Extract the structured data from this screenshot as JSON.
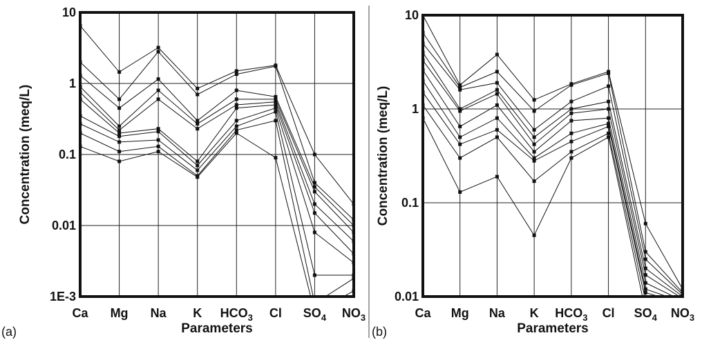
{
  "chart_data": [
    {
      "type": "line",
      "panel_label": "(a)",
      "categories": [
        "Ca",
        "Mg",
        "Na",
        "K",
        "HCO3",
        "Cl",
        "SO4",
        "NO3"
      ],
      "category_labels": [
        {
          "main": "Ca",
          "sub": ""
        },
        {
          "main": "Mg",
          "sub": ""
        },
        {
          "main": "Na",
          "sub": ""
        },
        {
          "main": "K",
          "sub": ""
        },
        {
          "main": "HCO",
          "sub": "3"
        },
        {
          "main": "Cl",
          "sub": ""
        },
        {
          "main": "SO",
          "sub": "4"
        },
        {
          "main": "NO",
          "sub": "3"
        }
      ],
      "xlabel": "Parameters",
      "ylabel": "Concentration (meq/L)",
      "yscale": "log",
      "ylim": [
        0.001,
        10
      ],
      "yticks": [
        10,
        1,
        0.1,
        0.01,
        0.001
      ],
      "ytick_labels": [
        "10",
        "1",
        "0.1",
        "0.01",
        "1E-3"
      ],
      "grid": true,
      "series": [
        {
          "values": [
            6.5,
            1.45,
            3.2,
            0.85,
            1.5,
            1.8,
            0.1,
            0.02
          ]
        },
        {
          "values": [
            2.0,
            0.6,
            2.8,
            0.7,
            1.35,
            1.75,
            0.04,
            0.012
          ]
        },
        {
          "values": [
            1.3,
            0.45,
            1.15,
            0.3,
            0.8,
            0.65,
            0.035,
            0.01
          ]
        },
        {
          "values": [
            0.9,
            0.25,
            0.8,
            0.27,
            0.6,
            0.6,
            0.03,
            0.008
          ]
        },
        {
          "values": [
            0.75,
            0.22,
            0.6,
            0.23,
            0.5,
            0.55,
            0.02,
            0.006
          ]
        },
        {
          "values": [
            0.6,
            0.2,
            0.23,
            0.08,
            0.45,
            0.5,
            0.015,
            0.004
          ]
        },
        {
          "values": [
            0.35,
            0.18,
            0.21,
            0.07,
            0.3,
            0.45,
            0.008,
            0.003
          ]
        },
        {
          "values": [
            0.27,
            0.15,
            0.16,
            0.06,
            0.25,
            0.4,
            0.002,
            0.002
          ]
        },
        {
          "values": [
            0.2,
            0.11,
            0.13,
            0.05,
            0.22,
            0.3,
            0.0008,
            0.0018
          ]
        },
        {
          "values": [
            0.13,
            0.08,
            0.11,
            0.048,
            0.2,
            0.09,
            0.0006,
            0.0012
          ]
        }
      ]
    },
    {
      "type": "line",
      "panel_label": "(b)",
      "categories": [
        "Ca",
        "Mg",
        "Na",
        "K",
        "HCO3",
        "Cl",
        "SO4",
        "NO3"
      ],
      "category_labels": [
        {
          "main": "Ca",
          "sub": ""
        },
        {
          "main": "Mg",
          "sub": ""
        },
        {
          "main": "Na",
          "sub": ""
        },
        {
          "main": "K",
          "sub": ""
        },
        {
          "main": "HCO",
          "sub": "3"
        },
        {
          "main": "Cl",
          "sub": ""
        },
        {
          "main": "SO",
          "sub": "4"
        },
        {
          "main": "NO",
          "sub": "3"
        }
      ],
      "xlabel": "Parameters",
      "ylabel": "Concentration (meq/L)",
      "yscale": "log",
      "ylim": [
        0.01,
        10
      ],
      "yticks": [
        10,
        1,
        0.1,
        0.01
      ],
      "ytick_labels": [
        "10",
        "1",
        "0.1",
        "0.01"
      ],
      "grid": true,
      "series": [
        {
          "values": [
            10.0,
            1.8,
            3.8,
            1.25,
            1.85,
            2.5,
            0.06,
            0.012
          ]
        },
        {
          "values": [
            6.5,
            1.7,
            2.5,
            0.95,
            1.8,
            2.4,
            0.03,
            0.011
          ]
        },
        {
          "values": [
            5.0,
            1.6,
            1.9,
            0.6,
            1.2,
            1.75,
            0.025,
            0.0105
          ]
        },
        {
          "values": [
            4.0,
            1.0,
            1.6,
            0.5,
            1.0,
            1.2,
            0.02,
            0.01
          ]
        },
        {
          "values": [
            3.3,
            0.95,
            1.45,
            0.42,
            0.9,
            1.0,
            0.017,
            0.0095
          ]
        },
        {
          "values": [
            2.6,
            0.65,
            1.1,
            0.35,
            0.75,
            0.8,
            0.014,
            0.009
          ]
        },
        {
          "values": [
            2.0,
            0.5,
            0.8,
            0.3,
            0.55,
            0.7,
            0.012,
            0.0088
          ]
        },
        {
          "values": [
            1.5,
            0.42,
            0.6,
            0.28,
            0.45,
            0.65,
            0.011,
            0.0085
          ]
        },
        {
          "values": [
            1.1,
            0.3,
            0.5,
            0.17,
            0.35,
            0.55,
            0.009,
            0.0082
          ]
        },
        {
          "values": [
            0.8,
            0.13,
            0.19,
            0.045,
            0.3,
            0.5,
            0.007,
            0.008
          ]
        }
      ]
    }
  ]
}
